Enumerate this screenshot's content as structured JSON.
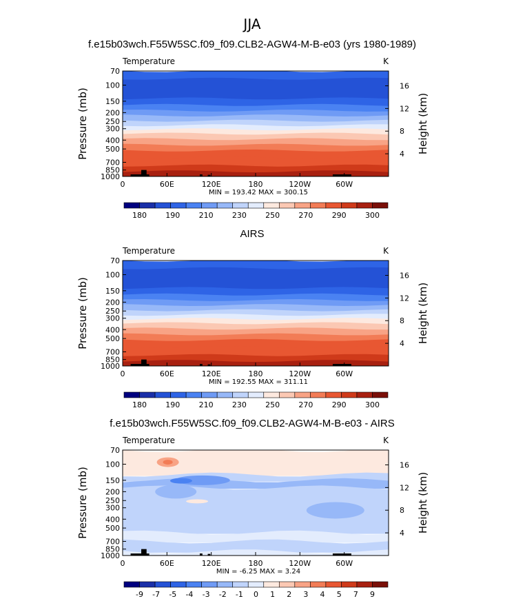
{
  "page_title": "JJA",
  "chart_data": [
    {
      "type": "heatmap",
      "title": "f.e15b03wch.F55W5SC.f09_f09.CLB2-AGW4-M-B-e03 (yrs 1980-1989)",
      "subtitle": "Temperature",
      "units": "K",
      "ylabel": "Pressure  (mb)",
      "y2label": "Height  (km)",
      "x_ticks": [
        "0",
        "60E",
        "120E",
        "180",
        "120W",
        "60W"
      ],
      "y_ticks": [
        "70",
        "100",
        "150",
        "200",
        "250",
        "300",
        "400",
        "500",
        "700",
        "850",
        "1000"
      ],
      "y2_ticks": [
        "16",
        "12",
        "8",
        "4"
      ],
      "ylim": [
        1000,
        70
      ],
      "stats": "MIN = 193.42   MAX = 300.15",
      "levels": [
        180,
        185,
        190,
        195,
        200,
        210,
        220,
        230,
        240,
        250,
        260,
        270,
        280,
        290,
        295,
        300
      ],
      "colorbar_labels": [
        "180",
        "190",
        "210",
        "230",
        "250",
        "270",
        "290",
        "300"
      ],
      "colors": [
        "#00007f",
        "#1a2fa8",
        "#2452d6",
        "#2e64e6",
        "#4a82f2",
        "#6f9bf5",
        "#97b8f8",
        "#c0d4fb",
        "#e3ecfd",
        "#fde9df",
        "#fbc8b3",
        "#f8a385",
        "#f27c56",
        "#e85732",
        "#cf3a1a",
        "#a82010",
        "#7a0f08"
      ]
    },
    {
      "type": "heatmap",
      "title": "AIRS",
      "subtitle": "Temperature",
      "units": "K",
      "ylabel": "Pressure  (mb)",
      "y2label": "Height  (km)",
      "x_ticks": [
        "0",
        "60E",
        "120E",
        "180",
        "120W",
        "60W"
      ],
      "y_ticks": [
        "70",
        "100",
        "150",
        "200",
        "250",
        "300",
        "400",
        "500",
        "700",
        "850",
        "1000"
      ],
      "y2_ticks": [
        "16",
        "12",
        "8",
        "4"
      ],
      "ylim": [
        1000,
        70
      ],
      "stats": "MIN = 192.55   MAX = 311.11",
      "levels": [
        180,
        185,
        190,
        195,
        200,
        210,
        220,
        230,
        240,
        250,
        260,
        270,
        280,
        290,
        295,
        300
      ],
      "colorbar_labels": [
        "180",
        "190",
        "210",
        "230",
        "250",
        "270",
        "290",
        "300"
      ],
      "colors": [
        "#00007f",
        "#1a2fa8",
        "#2452d6",
        "#2e64e6",
        "#4a82f2",
        "#6f9bf5",
        "#97b8f8",
        "#c0d4fb",
        "#e3ecfd",
        "#fde9df",
        "#fbc8b3",
        "#f8a385",
        "#f27c56",
        "#e85732",
        "#cf3a1a",
        "#a82010",
        "#7a0f08"
      ]
    },
    {
      "type": "heatmap",
      "title": "f.e15b03wch.F55W5SC.f09_f09.CLB2-AGW4-M-B-e03 - AIRS",
      "subtitle": "Temperature",
      "units": "K",
      "ylabel": "Pressure  (mb)",
      "y2label": "Height  (km)",
      "x_ticks": [
        "0",
        "60E",
        "120E",
        "180",
        "120W",
        "60W"
      ],
      "y_ticks": [
        "70",
        "100",
        "150",
        "200",
        "250",
        "300",
        "400",
        "500",
        "700",
        "850",
        "1000"
      ],
      "y2_ticks": [
        "16",
        "12",
        "8",
        "4"
      ],
      "ylim": [
        1000,
        70
      ],
      "stats": "MIN =  -6.25   MAX =   3.24",
      "levels": [
        -9,
        -8,
        -7,
        -6,
        -5,
        -4,
        -3,
        -2,
        -1,
        0,
        1,
        2,
        3,
        4,
        5,
        6,
        7,
        8,
        9
      ],
      "colorbar_labels": [
        "-9",
        "-7",
        "-5",
        "-4",
        "-3",
        "-2",
        "-1",
        "0",
        "1",
        "2",
        "3",
        "4",
        "5",
        "7",
        "9"
      ],
      "colors": [
        "#00007f",
        "#1a2fa8",
        "#2452d6",
        "#2e64e6",
        "#4a82f2",
        "#6f9bf5",
        "#97b8f8",
        "#c0d4fb",
        "#e3ecfd",
        "#fde9df",
        "#fbc8b3",
        "#f8a385",
        "#f27c56",
        "#e85732",
        "#cf3a1a",
        "#a82010",
        "#7a0f08"
      ]
    }
  ]
}
